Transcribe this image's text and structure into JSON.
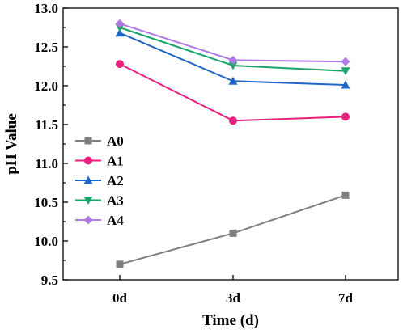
{
  "chart_data": {
    "type": "line",
    "title": "",
    "xlabel": "Time (d)",
    "ylabel": "pH Value",
    "categories": [
      "0d",
      "3d",
      "7d"
    ],
    "ylim": [
      9.5,
      13.0
    ],
    "yticks": [
      "9.5",
      "10.0",
      "10.5",
      "11.0",
      "11.5",
      "12.0",
      "12.5",
      "13.0"
    ],
    "grid": false,
    "legend_position": "left-middle",
    "series": [
      {
        "name": "A0",
        "values": [
          9.7,
          10.1,
          10.59
        ],
        "color": "#7f7f7f",
        "marker": "square"
      },
      {
        "name": "A1",
        "values": [
          12.28,
          11.55,
          11.6
        ],
        "color": "#e8207d",
        "marker": "circle"
      },
      {
        "name": "A2",
        "values": [
          12.68,
          12.06,
          12.01
        ],
        "color": "#1f66c8",
        "marker": "triangle-up"
      },
      {
        "name": "A3",
        "values": [
          12.75,
          12.26,
          12.19
        ],
        "color": "#1aa36a",
        "marker": "triangle-down"
      },
      {
        "name": "A4",
        "values": [
          12.8,
          12.33,
          12.31
        ],
        "color": "#b07ae6",
        "marker": "diamond"
      }
    ]
  }
}
